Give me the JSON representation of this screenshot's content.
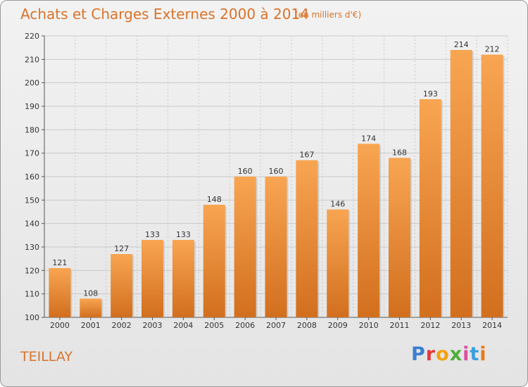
{
  "title": "Achats et Charges Externes 2000 à 2014",
  "subtitle": "(en milliers d'€)",
  "place": "TEILLAY",
  "logo": {
    "text": "Proxiti",
    "letter_colors": [
      "#3a7fd0",
      "#e23b3b",
      "#f2a20f",
      "#4fae3a",
      "#d94fa0",
      "#3a9ee0",
      "#e87a1a"
    ]
  },
  "colors": {
    "bar_light": "#f8a552",
    "bar_dark": "#d26f1e",
    "text_accent": "#d9732a",
    "grid": "#c9c9c9"
  },
  "chart_data": {
    "type": "bar",
    "categories": [
      "2000",
      "2001",
      "2002",
      "2003",
      "2004",
      "2005",
      "2006",
      "2007",
      "2008",
      "2009",
      "2010",
      "2011",
      "2012",
      "2013",
      "2014"
    ],
    "values": [
      121,
      108,
      127,
      133,
      133,
      148,
      160,
      160,
      167,
      146,
      174,
      168,
      193,
      214,
      212
    ],
    "title": "Achats et Charges Externes 2000 à 2014",
    "ylabel": "",
    "xlabel": "",
    "ylim": [
      100,
      220
    ],
    "yticks": [
      100,
      110,
      120,
      130,
      140,
      150,
      160,
      170,
      180,
      190,
      200,
      210,
      220
    ],
    "grid": true,
    "data_labels": true
  }
}
